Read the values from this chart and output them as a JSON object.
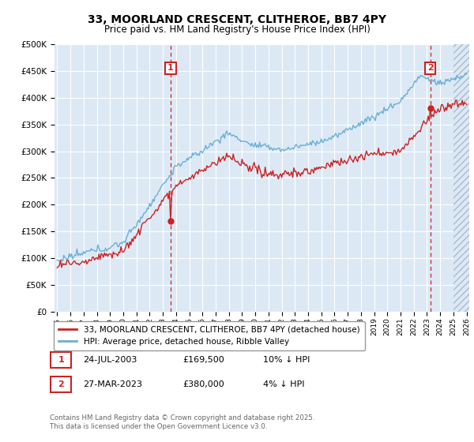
{
  "title": "33, MOORLAND CRESCENT, CLITHEROE, BB7 4PY",
  "subtitle": "Price paid vs. HM Land Registry's House Price Index (HPI)",
  "legend_line1": "33, MOORLAND CRESCENT, CLITHEROE, BB7 4PY (detached house)",
  "legend_line2": "HPI: Average price, detached house, Ribble Valley",
  "annotation1_date": "24-JUL-2003",
  "annotation1_price": "£169,500",
  "annotation1_hpi": "10% ↓ HPI",
  "annotation2_date": "27-MAR-2023",
  "annotation2_price": "£380,000",
  "annotation2_hpi": "4% ↓ HPI",
  "footer": "Contains HM Land Registry data © Crown copyright and database right 2025.\nThis data is licensed under the Open Government Licence v3.0.",
  "hpi_color": "#6baed6",
  "price_color": "#cc2222",
  "annotation_color": "#cc2222",
  "bg_color": "#dce9f5",
  "grid_color": "#ffffff",
  "ylim": [
    0,
    500000
  ],
  "yticks": [
    0,
    50000,
    100000,
    150000,
    200000,
    250000,
    300000,
    350000,
    400000,
    450000,
    500000
  ],
  "year_start": 1995,
  "year_end": 2026,
  "sale1_year": 2003.56,
  "sale1_price": 169500,
  "sale2_year": 2023.24,
  "sale2_price": 380000
}
